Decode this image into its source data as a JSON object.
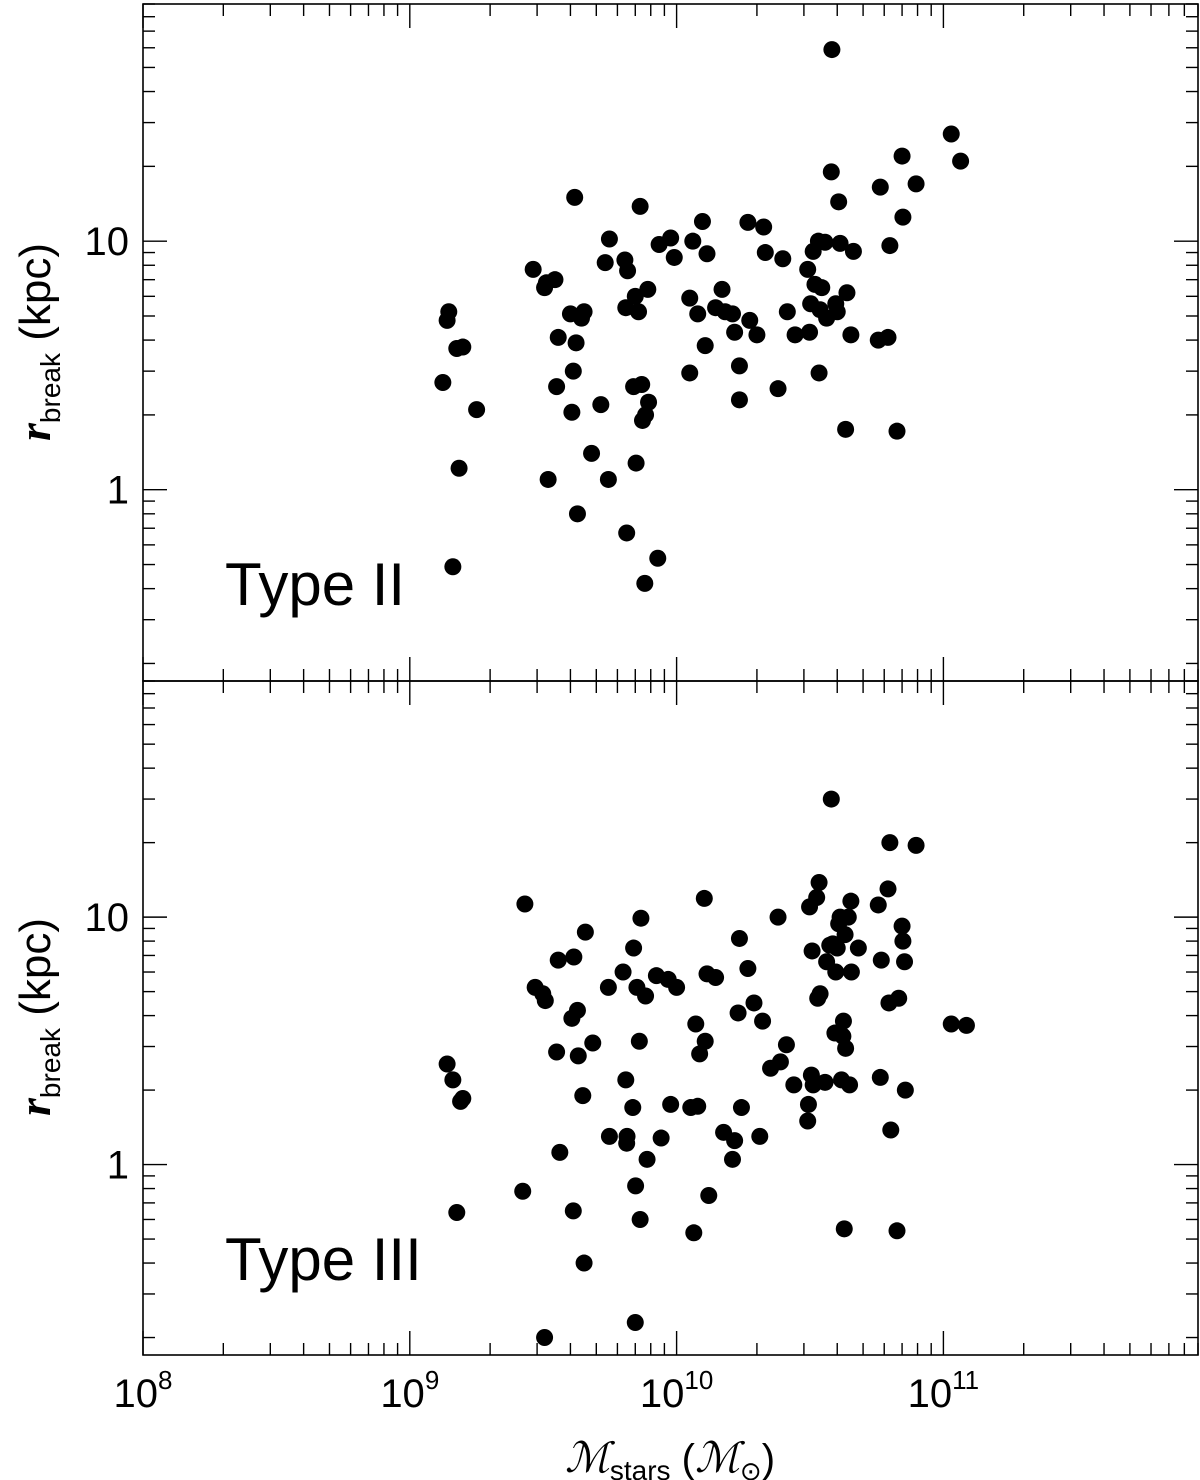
{
  "chart_data": [
    {
      "type": "scatter",
      "panel_label": "Type II",
      "xlabel": "M_stars (M_⊙)",
      "ylabel": "r_break (kpc)",
      "x_scale": "log",
      "y_scale": "log",
      "xlim": [
        100000000.0,
        900000000000.0
      ],
      "ylim": [
        0.17,
        90
      ],
      "y_tick_labels": [
        {
          "value": 1,
          "text": "1"
        },
        {
          "value": 10,
          "text": "10"
        }
      ],
      "marker_color": "#000000",
      "points": [
        [
          1330000000.0,
          2.7
        ],
        [
          1380000000.0,
          4.8
        ],
        [
          1400000000.0,
          5.2
        ],
        [
          1450000000.0,
          0.49
        ],
        [
          1500000000.0,
          3.7
        ],
        [
          1530000000.0,
          1.22
        ],
        [
          1580000000.0,
          3.75
        ],
        [
          1780000000.0,
          2.1
        ],
        [
          2900000000.0,
          7.7
        ],
        [
          3200000000.0,
          6.5
        ],
        [
          3250000000.0,
          6.8
        ],
        [
          3300000000.0,
          1.1
        ],
        [
          3500000000.0,
          7.0
        ],
        [
          3550000000.0,
          2.6
        ],
        [
          3600000000.0,
          4.1
        ],
        [
          4000000000.0,
          5.1
        ],
        [
          4050000000.0,
          2.05
        ],
        [
          4100000000.0,
          3.0
        ],
        [
          4150000000.0,
          15.0
        ],
        [
          4200000000.0,
          3.9
        ],
        [
          4250000000.0,
          0.8
        ],
        [
          4400000000.0,
          4.9
        ],
        [
          4500000000.0,
          5.2
        ],
        [
          4800000000.0,
          1.4
        ],
        [
          5200000000.0,
          2.2
        ],
        [
          5400000000.0,
          8.2
        ],
        [
          5550000000.0,
          1.1
        ],
        [
          5600000000.0,
          10.2
        ],
        [
          6400000000.0,
          8.4
        ],
        [
          6450000000.0,
          5.4
        ],
        [
          6500000000.0,
          0.67
        ],
        [
          6550000000.0,
          7.6
        ],
        [
          6900000000.0,
          2.6
        ],
        [
          7000000000.0,
          6.0
        ],
        [
          7050000000.0,
          1.28
        ],
        [
          7200000000.0,
          5.2
        ],
        [
          7300000000.0,
          13.8
        ],
        [
          7400000000.0,
          2.65
        ],
        [
          7450000000.0,
          1.9
        ],
        [
          7600000000.0,
          0.42
        ],
        [
          7650000000.0,
          2.0
        ],
        [
          7800000000.0,
          6.4
        ],
        [
          7850000000.0,
          2.25
        ],
        [
          8500000000.0,
          0.53
        ],
        [
          8600000000.0,
          9.7
        ],
        [
          9500000000.0,
          10.3
        ],
        [
          9800000000.0,
          8.6
        ],
        [
          11200000000.0,
          2.95
        ],
        [
          11200000000.0,
          5.9
        ],
        [
          11500000000.0,
          10.0
        ],
        [
          12000000000.0,
          5.1
        ],
        [
          12500000000.0,
          12.0
        ],
        [
          12800000000.0,
          3.8
        ],
        [
          13000000000.0,
          8.9
        ],
        [
          14000000000.0,
          5.4
        ],
        [
          14800000000.0,
          6.4
        ],
        [
          15200000000.0,
          5.2
        ],
        [
          16200000000.0,
          5.1
        ],
        [
          16500000000.0,
          4.3
        ],
        [
          17200000000.0,
          2.3
        ],
        [
          17200000000.0,
          3.15
        ],
        [
          18500000000.0,
          11.9
        ],
        [
          18800000000.0,
          4.8
        ],
        [
          20000000000.0,
          4.2
        ],
        [
          21200000000.0,
          11.4
        ],
        [
          21500000000.0,
          9.0
        ],
        [
          24000000000.0,
          2.55
        ],
        [
          25000000000.0,
          8.5
        ],
        [
          26000000000.0,
          5.2
        ],
        [
          27800000000.0,
          4.2
        ],
        [
          31000000000.0,
          7.7
        ],
        [
          31500000000.0,
          4.3
        ],
        [
          31800000000.0,
          5.6
        ],
        [
          32500000000.0,
          9.1
        ],
        [
          33000000000.0,
          6.7
        ],
        [
          34000000000.0,
          10.0
        ],
        [
          34200000000.0,
          2.95
        ],
        [
          34500000000.0,
          5.3
        ],
        [
          35000000000.0,
          6.5
        ],
        [
          36000000000.0,
          9.9
        ],
        [
          36500000000.0,
          4.9
        ],
        [
          38000000000.0,
          19.0
        ],
        [
          38200000000.0,
          59.0
        ],
        [
          39500000000.0,
          5.6
        ],
        [
          40000000000.0,
          5.2
        ],
        [
          40500000000.0,
          14.4
        ],
        [
          41000000000.0,
          9.8
        ],
        [
          43000000000.0,
          1.75
        ],
        [
          43500000000.0,
          6.2
        ],
        [
          45000000000.0,
          4.2
        ],
        [
          46000000000.0,
          9.1
        ],
        [
          57000000000.0,
          4.0
        ],
        [
          58000000000.0,
          16.5
        ],
        [
          62000000000.0,
          4.1
        ],
        [
          63000000000.0,
          9.6
        ],
        [
          67000000000.0,
          1.72
        ],
        [
          70000000000.0,
          22.0
        ],
        [
          70500000000.0,
          12.5
        ],
        [
          79000000000.0,
          17.0
        ],
        [
          107000000000.0,
          27.0
        ],
        [
          116000000000.0,
          21.0
        ]
      ]
    },
    {
      "type": "scatter",
      "panel_label": "Type III",
      "xlabel": "M_stars (M_⊙)",
      "ylabel": "r_break (kpc)",
      "x_scale": "log",
      "y_scale": "log",
      "xlim": [
        100000000.0,
        900000000000.0
      ],
      "ylim": [
        0.17,
        90
      ],
      "y_tick_labels": [
        {
          "value": 1,
          "text": "1"
        },
        {
          "value": 10,
          "text": "10"
        }
      ],
      "x_tick_labels": [
        {
          "value": 100000000.0,
          "base": "10",
          "exp": "8"
        },
        {
          "value": 1000000000.0,
          "base": "10",
          "exp": "9"
        },
        {
          "value": 10000000000.0,
          "base": "10",
          "exp": "10"
        },
        {
          "value": 100000000000.0,
          "base": "10",
          "exp": "11"
        }
      ],
      "marker_color": "#000000",
      "points": [
        [
          1380000000.0,
          2.55
        ],
        [
          1450000000.0,
          2.2
        ],
        [
          1500000000.0,
          0.64
        ],
        [
          1550000000.0,
          1.8
        ],
        [
          1580000000.0,
          1.85
        ],
        [
          2650000000.0,
          0.78
        ],
        [
          2700000000.0,
          11.3
        ],
        [
          2950000000.0,
          5.2
        ],
        [
          3150000000.0,
          4.9
        ],
        [
          3200000000.0,
          0.2
        ],
        [
          3220000000.0,
          4.6
        ],
        [
          3550000000.0,
          2.85
        ],
        [
          3600000000.0,
          6.7
        ],
        [
          3650000000.0,
          1.12
        ],
        [
          4050000000.0,
          3.9
        ],
        [
          4100000000.0,
          0.65
        ],
        [
          4120000000.0,
          6.9
        ],
        [
          4250000000.0,
          4.2
        ],
        [
          4280000000.0,
          2.75
        ],
        [
          4450000000.0,
          1.9
        ],
        [
          4500000000.0,
          0.4
        ],
        [
          4550000000.0,
          8.7
        ],
        [
          4850000000.0,
          3.1
        ],
        [
          5550000000.0,
          5.2
        ],
        [
          5600000000.0,
          1.3
        ],
        [
          6300000000.0,
          6.0
        ],
        [
          6450000000.0,
          2.2
        ],
        [
          6500000000.0,
          1.22
        ],
        [
          6520000000.0,
          1.3
        ],
        [
          6850000000.0,
          1.7
        ],
        [
          6900000000.0,
          7.5
        ],
        [
          7000000000.0,
          0.23
        ],
        [
          7020000000.0,
          0.82
        ],
        [
          7100000000.0,
          5.2
        ],
        [
          7250000000.0,
          3.15
        ],
        [
          7300000000.0,
          0.6
        ],
        [
          7350000000.0,
          9.9
        ],
        [
          7650000000.0,
          4.8
        ],
        [
          7750000000.0,
          1.05
        ],
        [
          8400000000.0,
          5.8
        ],
        [
          8750000000.0,
          1.28
        ],
        [
          9300000000.0,
          5.6
        ],
        [
          9500000000.0,
          1.75
        ],
        [
          10000000000.0,
          5.2
        ],
        [
          11300000000.0,
          1.7
        ],
        [
          11600000000.0,
          0.53
        ],
        [
          11800000000.0,
          3.7
        ],
        [
          12000000000.0,
          1.72
        ],
        [
          12200000000.0,
          2.8
        ],
        [
          12700000000.0,
          11.9
        ],
        [
          12800000000.0,
          3.15
        ],
        [
          13000000000.0,
          5.9
        ],
        [
          13200000000.0,
          0.75
        ],
        [
          14000000000.0,
          5.7
        ],
        [
          15000000000.0,
          1.35
        ],
        [
          16200000000.0,
          1.05
        ],
        [
          16500000000.0,
          1.25
        ],
        [
          17000000000.0,
          4.1
        ],
        [
          17200000000.0,
          8.2
        ],
        [
          17500000000.0,
          1.7
        ],
        [
          18500000000.0,
          6.2
        ],
        [
          19500000000.0,
          4.5
        ],
        [
          20500000000.0,
          1.3
        ],
        [
          21000000000.0,
          3.8
        ],
        [
          22500000000.0,
          2.45
        ],
        [
          24000000000.0,
          10.0
        ],
        [
          24500000000.0,
          2.6
        ],
        [
          25800000000.0,
          3.05
        ],
        [
          27500000000.0,
          2.1
        ],
        [
          31000000000.0,
          1.5
        ],
        [
          31200000000.0,
          1.75
        ],
        [
          31500000000.0,
          11.0
        ],
        [
          32000000000.0,
          2.3
        ],
        [
          32200000000.0,
          7.3
        ],
        [
          32500000000.0,
          2.1
        ],
        [
          33500000000.0,
          12.0
        ],
        [
          33800000000.0,
          4.7
        ],
        [
          34200000000.0,
          13.8
        ],
        [
          34500000000.0,
          4.9
        ],
        [
          36000000000.0,
          2.15
        ],
        [
          36500000000.0,
          6.6
        ],
        [
          37500000000.0,
          7.7
        ],
        [
          38000000000.0,
          30.0
        ],
        [
          38500000000.0,
          7.8
        ],
        [
          39200000000.0,
          3.4
        ],
        [
          39500000000.0,
          6.0
        ],
        [
          40000000000.0,
          7.5
        ],
        [
          40500000000.0,
          9.4
        ],
        [
          41000000000.0,
          10.0
        ],
        [
          41500000000.0,
          2.2
        ],
        [
          42000000000.0,
          3.3
        ],
        [
          42200000000.0,
          3.8
        ],
        [
          42500000000.0,
          0.55
        ],
        [
          42800000000.0,
          8.5
        ],
        [
          43000000000.0,
          2.95
        ],
        [
          44000000000.0,
          10.0
        ],
        [
          44500000000.0,
          2.1
        ],
        [
          45000000000.0,
          11.6
        ],
        [
          45200000000.0,
          6.0
        ],
        [
          48000000000.0,
          7.5
        ],
        [
          57000000000.0,
          11.2
        ],
        [
          58000000000.0,
          2.25
        ],
        [
          58500000000.0,
          6.7
        ],
        [
          62000000000.0,
          13.0
        ],
        [
          62500000000.0,
          4.5
        ],
        [
          63000000000.0,
          20.0
        ],
        [
          63500000000.0,
          1.38
        ],
        [
          67000000000.0,
          0.54
        ],
        [
          68000000000.0,
          4.7
        ],
        [
          70000000000.0,
          9.2
        ],
        [
          70500000000.0,
          8.0
        ],
        [
          71500000000.0,
          6.6
        ],
        [
          72000000000.0,
          2.0
        ],
        [
          79000000000.0,
          19.5
        ],
        [
          107000000000.0,
          3.7
        ],
        [
          122000000000.0,
          3.65
        ]
      ]
    }
  ]
}
